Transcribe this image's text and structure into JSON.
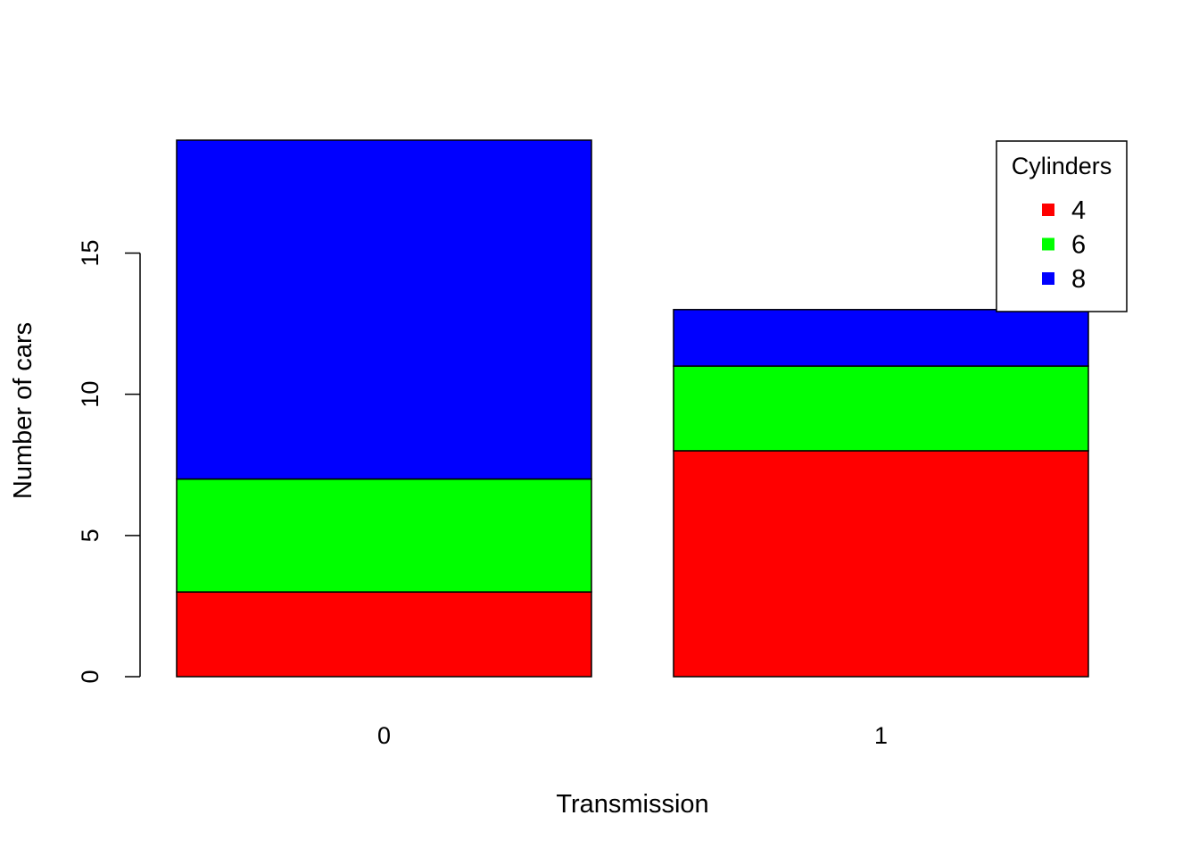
{
  "chart_data": {
    "type": "bar",
    "stacked": true,
    "title": "",
    "xlabel": "Transmission",
    "ylabel": "Number of cars",
    "categories": [
      "0",
      "1"
    ],
    "series": [
      {
        "name": "4",
        "color": "#FF0000",
        "values": [
          3,
          8
        ]
      },
      {
        "name": "6",
        "color": "#00FF00",
        "values": [
          4,
          3
        ]
      },
      {
        "name": "8",
        "color": "#0000FF",
        "values": [
          12,
          2
        ]
      }
    ],
    "ylim": [
      0,
      19
    ],
    "yticks": [
      0,
      5,
      10,
      15
    ],
    "ytick_labels": [
      "0",
      "5",
      "10",
      "15"
    ],
    "grid": false,
    "legend": {
      "title": "Cylinders",
      "placement": "top-right"
    }
  }
}
